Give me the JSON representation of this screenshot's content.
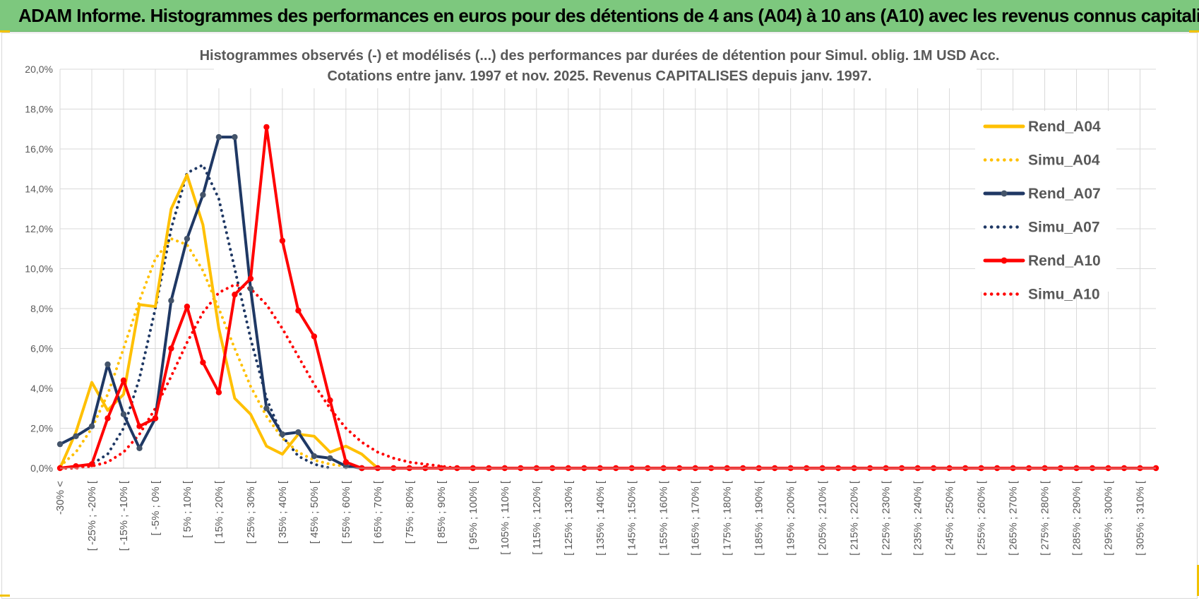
{
  "banner_title": "ADAM Informe. Histogrammes des performances en euros pour des détentions de 4 ans (A04) à 10 ans (A10) avec les revenus connus capitalisés",
  "colors": {
    "banner": "#7dc87e",
    "A04": "#ffc000",
    "A07": "#1f3864",
    "A10": "#ff0000",
    "grid": "#d9d9d9",
    "text": "#595959"
  },
  "chart_data": {
    "type": "line",
    "title_lines": [
      "Histogrammes observés (-) et modélisés (...) des performances par durées de détention pour Simul. oblig. 1M USD Acc.",
      "Cotations entre janv. 1997 et nov. 2025. Revenus CAPITALISES depuis janv. 1997."
    ],
    "xlabel": "",
    "ylabel": "",
    "ylim": [
      0,
      0.2
    ],
    "y_ticks": [
      "0,0%",
      "2,0%",
      "4,0%",
      "6,0%",
      "8,0%",
      "10,0%",
      "12,0%",
      "14,0%",
      "16,0%",
      "18,0%",
      "20,0%"
    ],
    "x_tick_labels": [
      "-30% <",
      "[ -25% ; -20% [",
      "[ -15% ; -10% [",
      "[ -5% ; 0% [",
      "[ 5% ; 10% [",
      "[ 15% ; 20% [",
      "[ 25% ; 30% [",
      "[ 35% ; 40% [",
      "[ 45% ; 50% [",
      "[ 55% ; 60% [",
      "[ 65% ; 70% [",
      "[ 75% ; 80% [",
      "[ 85% ; 90% [",
      "[ 95% ; 100% [",
      "[ 105% ; 110% [",
      "[ 115% ; 120% [",
      "[ 125% ; 130% [",
      "[ 135% ; 140% [",
      "[ 145% ; 150% [",
      "[ 155% ; 160% [",
      "[ 165% ; 170% [",
      "[ 175% ; 180% [",
      "[ 185% ; 190% [",
      "[ 195% ; 200% [",
      "[ 205% ; 210% [",
      "[ 215% ; 220% [",
      "[ 225% ; 230% [",
      "[ 235% ; 240% [",
      "[ 245% ; 250% [",
      "[ 255% ; 260% [",
      "[ 265% ; 270% [",
      "[ 275% ; 280% [",
      "[ 285% ; 290% [",
      "[ 295% ; 300% [",
      "[ 305% ; 310% ["
    ],
    "n_categories": 70,
    "legend_position": "right",
    "grid": true,
    "series": [
      {
        "name": "Rend_A04",
        "style": "solid",
        "markers": false,
        "color": "#ffc000",
        "values": [
          0.0,
          0.018,
          0.043,
          0.029,
          0.037,
          0.082,
          0.081,
          0.13,
          0.147,
          0.122,
          0.07,
          0.035,
          0.027,
          0.011,
          0.007,
          0.017,
          0.016,
          0.008,
          0.011,
          0.007,
          0.0
        ]
      },
      {
        "name": "Simu_A04",
        "style": "dotted",
        "markers": false,
        "color": "#ffc000",
        "values": [
          0.001,
          0.008,
          0.02,
          0.037,
          0.06,
          0.084,
          0.105,
          0.115,
          0.112,
          0.099,
          0.08,
          0.06,
          0.041,
          0.026,
          0.015,
          0.008,
          0.004,
          0.002,
          0.001,
          0.0
        ]
      },
      {
        "name": "Rend_A07",
        "style": "solid",
        "markers": true,
        "color": "#1f3864",
        "values": [
          0.012,
          0.016,
          0.021,
          0.052,
          0.027,
          0.01,
          0.025,
          0.084,
          0.115,
          0.137,
          0.166,
          0.166,
          0.09,
          0.03,
          0.017,
          0.018,
          0.006,
          0.005,
          0.001,
          0.0
        ]
      },
      {
        "name": "Simu_A07",
        "style": "dotted",
        "markers": false,
        "color": "#1f3864",
        "values": [
          0.0,
          0.0,
          0.002,
          0.007,
          0.02,
          0.045,
          0.08,
          0.12,
          0.148,
          0.152,
          0.135,
          0.1,
          0.065,
          0.035,
          0.016,
          0.006,
          0.002,
          0.0
        ]
      },
      {
        "name": "Rend_A10",
        "style": "solid",
        "markers": true,
        "color": "#ff0000",
        "values": [
          0.0,
          0.001,
          0.002,
          0.025,
          0.044,
          0.021,
          0.025,
          0.06,
          0.081,
          0.053,
          0.038,
          0.087,
          0.095,
          0.171,
          0.114,
          0.079,
          0.066,
          0.034,
          0.003,
          0.0,
          0.0,
          0.0,
          0.0,
          0.0,
          0.0,
          0.0,
          0.0,
          0.0,
          0.0,
          0.0,
          0.0,
          0.0,
          0.0,
          0.0,
          0.0,
          0.0,
          0.0,
          0.0,
          0.0,
          0.0,
          0.0,
          0.0,
          0.0,
          0.0,
          0.0,
          0.0,
          0.0,
          0.0,
          0.0,
          0.0,
          0.0,
          0.0,
          0.0,
          0.0,
          0.0,
          0.0,
          0.0,
          0.0,
          0.0,
          0.0,
          0.0,
          0.0,
          0.0,
          0.0,
          0.0,
          0.0,
          0.0,
          0.0,
          0.0,
          0.0
        ]
      },
      {
        "name": "Simu_A10",
        "style": "dotted",
        "markers": false,
        "color": "#ff0000",
        "values": [
          0.0,
          0.0,
          0.001,
          0.003,
          0.008,
          0.017,
          0.03,
          0.046,
          0.063,
          0.078,
          0.088,
          0.092,
          0.09,
          0.082,
          0.07,
          0.056,
          0.042,
          0.03,
          0.02,
          0.013,
          0.008,
          0.005,
          0.003,
          0.002,
          0.001,
          0.0,
          0.0
        ]
      }
    ]
  }
}
